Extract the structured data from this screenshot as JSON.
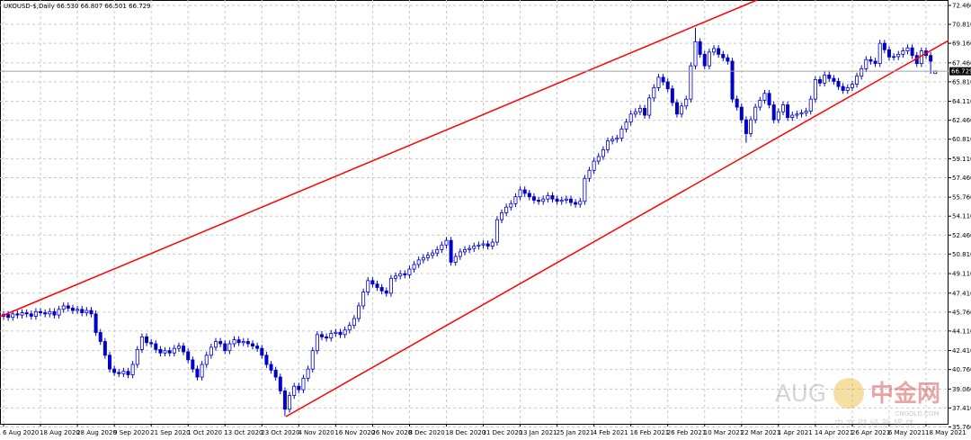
{
  "chart_data": {
    "type": "candlestick",
    "title": "UKOUSD-$,Daily  66.530 66.807 66.501 66.729",
    "color": "#0000c8",
    "grid": true,
    "ylim": [
      36.11,
      72.93
    ],
    "yticks": [
      {
        "value": 72.46,
        "label": "72.460"
      },
      {
        "value": 70.81,
        "label": "70.810"
      },
      {
        "value": 69.16,
        "label": "69.160"
      },
      {
        "value": 67.46,
        "label": "67.460"
      },
      {
        "value": 65.81,
        "label": "65.810"
      },
      {
        "value": 64.11,
        "label": "64.110"
      },
      {
        "value": 62.46,
        "label": "62.460"
      },
      {
        "value": 60.81,
        "label": "60.810"
      },
      {
        "value": 59.11,
        "label": "59.110"
      },
      {
        "value": 57.46,
        "label": "57.460"
      },
      {
        "value": 55.76,
        "label": "55.760"
      },
      {
        "value": 54.11,
        "label": "54.110"
      },
      {
        "value": 52.46,
        "label": "52.460"
      },
      {
        "value": 50.81,
        "label": "50.810"
      },
      {
        "value": 49.11,
        "label": "49.110"
      },
      {
        "value": 47.41,
        "label": "47.410"
      },
      {
        "value": 45.76,
        "label": "45.760"
      },
      {
        "value": 44.11,
        "label": "44.110"
      },
      {
        "value": 42.41,
        "label": "42.410"
      },
      {
        "value": 40.76,
        "label": "40.760"
      },
      {
        "value": 39.06,
        "label": "39.060"
      },
      {
        "value": 37.41,
        "label": "37.410"
      },
      {
        "value": 35.76,
        "label": "35.760"
      }
    ],
    "current_price": {
      "value": 66.729,
      "label": "66.729"
    },
    "categories": [
      "6 Aug 2020",
      null,
      null,
      null,
      null,
      null,
      null,
      null,
      "18 Aug 2020",
      null,
      null,
      null,
      null,
      null,
      null,
      null,
      "28 Aug 2020",
      null,
      null,
      null,
      null,
      null,
      null,
      null,
      "9 Sep 2020",
      null,
      null,
      null,
      null,
      null,
      null,
      null,
      "21 Sep 2020",
      null,
      null,
      null,
      null,
      null,
      null,
      null,
      "1 Oct 2020",
      null,
      null,
      null,
      null,
      null,
      null,
      null,
      "13 Oct 2020",
      null,
      null,
      null,
      null,
      null,
      null,
      null,
      "23 Oct 2020",
      null,
      null,
      null,
      null,
      null,
      null,
      null,
      "4 Nov 2020",
      null,
      null,
      null,
      null,
      null,
      null,
      null,
      "16 Nov 2020",
      null,
      null,
      null,
      null,
      null,
      null,
      null,
      "26 Nov 2020",
      null,
      null,
      null,
      null,
      null,
      null,
      null,
      "8 Dec 2020",
      null,
      null,
      null,
      null,
      null,
      null,
      null,
      "18 Dec 2020",
      null,
      null,
      null,
      null,
      null,
      null,
      null,
      "31 Dec 2020",
      null,
      null,
      null,
      null,
      null,
      null,
      null,
      "13 Jan 2021",
      null,
      null,
      null,
      null,
      null,
      null,
      null,
      "25 Jan 2021",
      null,
      null,
      null,
      null,
      null,
      null,
      null,
      "4 Feb 2021",
      null,
      null,
      null,
      null,
      null,
      null,
      null,
      "16 Feb 2021",
      null,
      null,
      null,
      null,
      null,
      null,
      null,
      "26 Feb 2021",
      null,
      null,
      null,
      null,
      null,
      null,
      null,
      "10 Mar 2021",
      null,
      null,
      null,
      null,
      null,
      null,
      null,
      "22 Mar 2021",
      null,
      null,
      null,
      null,
      null,
      null,
      null,
      "1 Apr 2021",
      null,
      null,
      null,
      null,
      null,
      null,
      null,
      "14 Apr 2021",
      null,
      null,
      null,
      null,
      null,
      null,
      null,
      "26 Apr 2021",
      null,
      null,
      null,
      null,
      null,
      null,
      null,
      "6 May 2021",
      null,
      null,
      null,
      null,
      null,
      null,
      null,
      "18 May 2021",
      null,
      null
    ],
    "candles": [
      [
        45.4,
        45.85,
        45.1,
        45.55
      ],
      [
        45.55,
        45.85,
        45.0,
        45.3
      ],
      [
        45.3,
        45.9,
        45.0,
        45.6
      ],
      [
        45.6,
        45.9,
        45.2,
        45.5
      ],
      [
        45.5,
        46.0,
        45.2,
        45.7
      ],
      [
        45.7,
        46.0,
        45.3,
        45.6
      ],
      [
        45.6,
        45.9,
        45.1,
        45.4
      ],
      [
        45.4,
        46.1,
        45.1,
        45.8
      ],
      [
        45.8,
        46.1,
        45.4,
        45.7
      ],
      [
        45.7,
        46.0,
        45.3,
        45.6
      ],
      [
        45.6,
        46.1,
        45.3,
        45.8
      ],
      [
        45.8,
        46.1,
        45.2,
        45.5
      ],
      [
        45.5,
        46.3,
        45.2,
        46.0
      ],
      [
        46.0,
        46.6,
        45.7,
        46.3
      ],
      [
        46.3,
        46.6,
        45.8,
        46.1
      ],
      [
        46.1,
        46.4,
        45.6,
        45.9
      ],
      [
        45.9,
        46.3,
        45.6,
        46.0
      ],
      [
        46.0,
        46.3,
        45.4,
        45.7
      ],
      [
        45.7,
        46.2,
        45.4,
        45.9
      ],
      [
        45.9,
        46.2,
        45.3,
        45.6
      ],
      [
        45.6,
        45.9,
        43.68,
        43.98
      ],
      [
        43.98,
        44.28,
        42.9,
        43.2
      ],
      [
        43.2,
        43.5,
        41.7,
        42.0
      ],
      [
        42.0,
        42.3,
        40.5,
        40.8
      ],
      [
        40.8,
        41.1,
        40.2,
        40.5
      ],
      [
        40.5,
        40.8,
        40.1,
        40.4
      ],
      [
        40.4,
        40.9,
        40.1,
        40.6
      ],
      [
        40.6,
        40.9,
        40.0,
        40.3
      ],
      [
        40.3,
        41.5,
        40.0,
        41.2
      ],
      [
        41.2,
        42.8,
        40.9,
        42.5
      ],
      [
        42.5,
        43.9,
        42.2,
        43.6
      ],
      [
        43.6,
        43.9,
        42.8,
        43.1
      ],
      [
        43.1,
        43.4,
        42.7,
        43.0
      ],
      [
        43.0,
        43.3,
        42.2,
        42.5
      ],
      [
        42.5,
        42.8,
        41.9,
        42.2
      ],
      [
        42.2,
        42.7,
        41.9,
        42.4
      ],
      [
        42.4,
        42.7,
        41.9,
        42.2
      ],
      [
        42.2,
        42.9,
        41.9,
        42.6
      ],
      [
        42.6,
        43.1,
        42.3,
        42.8
      ],
      [
        42.8,
        43.1,
        42.0,
        42.3
      ],
      [
        42.3,
        42.6,
        41.3,
        41.6
      ],
      [
        41.6,
        41.9,
        40.5,
        40.8
      ],
      [
        40.8,
        41.1,
        39.8,
        40.1
      ],
      [
        40.1,
        41.5,
        39.8,
        41.2
      ],
      [
        41.2,
        42.3,
        40.9,
        42.0
      ],
      [
        42.0,
        43.0,
        41.7,
        42.7
      ],
      [
        42.7,
        43.5,
        42.4,
        43.2
      ],
      [
        43.2,
        43.5,
        42.7,
        43.0
      ],
      [
        43.0,
        43.3,
        42.1,
        42.4
      ],
      [
        42.4,
        43.3,
        42.1,
        43.0
      ],
      [
        43.0,
        43.65,
        42.7,
        43.35
      ],
      [
        43.35,
        43.65,
        42.8,
        43.1
      ],
      [
        43.1,
        43.5,
        42.8,
        43.2
      ],
      [
        43.2,
        43.5,
        42.7,
        43.0
      ],
      [
        43.0,
        43.3,
        42.5,
        42.8
      ],
      [
        42.8,
        43.1,
        42.3,
        42.6
      ],
      [
        42.6,
        42.9,
        41.7,
        42.0
      ],
      [
        42.0,
        42.3,
        40.9,
        41.2
      ],
      [
        41.2,
        41.5,
        40.4,
        40.7
      ],
      [
        40.7,
        41.0,
        39.8,
        40.1
      ],
      [
        40.1,
        40.4,
        38.6,
        38.9
      ],
      [
        38.9,
        39.2,
        36.7,
        37.3
      ],
      [
        37.3,
        38.8,
        37.0,
        38.5
      ],
      [
        38.5,
        39.6,
        38.2,
        39.3
      ],
      [
        39.3,
        39.6,
        38.7,
        39.0
      ],
      [
        39.0,
        40.3,
        38.7,
        40.0
      ],
      [
        40.0,
        41.1,
        39.7,
        40.8
      ],
      [
        40.8,
        42.7,
        40.5,
        42.4
      ],
      [
        42.4,
        44.1,
        42.1,
        43.8
      ],
      [
        43.8,
        44.1,
        43.3,
        43.6
      ],
      [
        43.6,
        43.9,
        43.2,
        43.5
      ],
      [
        43.5,
        44.2,
        43.2,
        43.9
      ],
      [
        43.9,
        44.3,
        43.6,
        44.0
      ],
      [
        44.0,
        44.3,
        43.5,
        43.8
      ],
      [
        43.8,
        44.5,
        43.5,
        44.2
      ],
      [
        44.2,
        44.9,
        43.9,
        44.6
      ],
      [
        44.6,
        45.5,
        44.3,
        45.2
      ],
      [
        45.2,
        46.6,
        44.9,
        46.3
      ],
      [
        46.3,
        47.8,
        46.0,
        47.5
      ],
      [
        47.5,
        48.8,
        47.2,
        48.5
      ],
      [
        48.5,
        48.8,
        47.9,
        48.2
      ],
      [
        48.2,
        48.5,
        47.6,
        47.9
      ],
      [
        47.9,
        48.2,
        47.3,
        47.6
      ],
      [
        47.6,
        47.9,
        47.1,
        47.4
      ],
      [
        47.4,
        49.0,
        47.1,
        48.7
      ],
      [
        48.7,
        49.2,
        48.4,
        48.9
      ],
      [
        48.9,
        49.4,
        48.6,
        49.1
      ],
      [
        49.1,
        49.4,
        48.7,
        49.0
      ],
      [
        49.0,
        49.8,
        48.7,
        49.5
      ],
      [
        49.5,
        50.2,
        49.2,
        49.9
      ],
      [
        49.9,
        50.6,
        49.6,
        50.3
      ],
      [
        50.3,
        50.8,
        50.0,
        50.5
      ],
      [
        50.5,
        51.0,
        50.2,
        50.7
      ],
      [
        50.7,
        51.2,
        50.4,
        50.9
      ],
      [
        50.9,
        51.5,
        50.6,
        51.2
      ],
      [
        51.2,
        51.9,
        50.9,
        51.6
      ],
      [
        51.6,
        52.3,
        51.3,
        52.0
      ],
      [
        52.0,
        52.3,
        49.8,
        50.1
      ],
      [
        50.1,
        50.9,
        49.8,
        50.6
      ],
      [
        50.6,
        51.3,
        50.3,
        51.0
      ],
      [
        51.0,
        51.5,
        50.7,
        51.2
      ],
      [
        51.2,
        51.6,
        50.9,
        51.3
      ],
      [
        51.3,
        51.8,
        51.0,
        51.5
      ],
      [
        51.5,
        51.9,
        51.2,
        51.6
      ],
      [
        51.6,
        52.0,
        51.3,
        51.7
      ],
      [
        51.7,
        52.0,
        51.2,
        51.5
      ],
      [
        51.5,
        52.15,
        51.2,
        51.85
      ],
      [
        51.85,
        54.1,
        51.55,
        53.8
      ],
      [
        53.8,
        54.7,
        53.5,
        54.4
      ],
      [
        54.4,
        55.2,
        54.1,
        54.9
      ],
      [
        54.9,
        55.5,
        54.6,
        55.2
      ],
      [
        55.2,
        56.1,
        54.9,
        55.8
      ],
      [
        55.8,
        56.7,
        55.5,
        56.4
      ],
      [
        56.4,
        56.7,
        55.8,
        56.1
      ],
      [
        56.1,
        56.4,
        55.5,
        55.8
      ],
      [
        55.8,
        56.1,
        55.2,
        55.5
      ],
      [
        55.5,
        55.8,
        55.1,
        55.4
      ],
      [
        55.4,
        55.9,
        55.1,
        55.6
      ],
      [
        55.6,
        56.2,
        55.3,
        55.9
      ],
      [
        55.9,
        56.2,
        55.3,
        55.6
      ],
      [
        55.6,
        55.9,
        55.1,
        55.4
      ],
      [
        55.4,
        55.8,
        55.1,
        55.5
      ],
      [
        55.5,
        55.9,
        55.2,
        55.6
      ],
      [
        55.6,
        55.9,
        55.0,
        55.3
      ],
      [
        55.3,
        55.6,
        54.85,
        55.15
      ],
      [
        55.15,
        55.7,
        54.85,
        55.4
      ],
      [
        55.4,
        57.7,
        55.1,
        57.4
      ],
      [
        57.4,
        58.4,
        57.1,
        58.1
      ],
      [
        58.1,
        59.2,
        57.8,
        58.9
      ],
      [
        58.9,
        59.6,
        58.6,
        59.3
      ],
      [
        59.3,
        60.2,
        59.0,
        59.9
      ],
      [
        59.9,
        60.96,
        59.6,
        60.66
      ],
      [
        60.66,
        61.1,
        60.36,
        60.8
      ],
      [
        60.8,
        61.2,
        60.5,
        60.9
      ],
      [
        60.9,
        62.0,
        60.6,
        61.7
      ],
      [
        61.7,
        62.6,
        61.4,
        62.3
      ],
      [
        62.3,
        63.3,
        62.0,
        63.0
      ],
      [
        63.0,
        63.5,
        62.7,
        63.2
      ],
      [
        63.2,
        63.8,
        62.9,
        63.5
      ],
      [
        63.5,
        63.8,
        62.6,
        62.9
      ],
      [
        62.9,
        64.7,
        62.6,
        64.4
      ],
      [
        64.4,
        65.6,
        64.1,
        65.3
      ],
      [
        65.3,
        66.5,
        65.0,
        66.2
      ],
      [
        66.2,
        66.5,
        65.5,
        65.8
      ],
      [
        65.8,
        66.1,
        64.9,
        65.2
      ],
      [
        65.2,
        65.5,
        63.7,
        64.0
      ],
      [
        64.0,
        64.3,
        62.7,
        63.0
      ],
      [
        63.0,
        64.0,
        62.7,
        63.7
      ],
      [
        63.7,
        64.6,
        63.4,
        64.3
      ],
      [
        64.3,
        67.5,
        64.0,
        67.2
      ],
      [
        67.2,
        70.5,
        66.9,
        69.3
      ],
      [
        69.3,
        69.6,
        67.9,
        68.2
      ],
      [
        68.2,
        68.5,
        66.9,
        67.2
      ],
      [
        67.2,
        68.7,
        66.9,
        68.4
      ],
      [
        68.4,
        69.0,
        68.1,
        68.7
      ],
      [
        68.7,
        69.0,
        67.9,
        68.2
      ],
      [
        68.2,
        68.5,
        67.6,
        67.9
      ],
      [
        67.9,
        68.2,
        67.3,
        67.6
      ],
      [
        67.6,
        67.9,
        64.0,
        64.3
      ],
      [
        64.3,
        64.6,
        63.3,
        63.6
      ],
      [
        63.6,
        63.9,
        62.2,
        62.5
      ],
      [
        62.5,
        62.8,
        60.5,
        61.3
      ],
      [
        61.3,
        62.8,
        61.0,
        62.5
      ],
      [
        62.5,
        63.9,
        62.2,
        63.6
      ],
      [
        63.6,
        64.5,
        63.3,
        64.2
      ],
      [
        64.2,
        65.1,
        63.9,
        64.8
      ],
      [
        64.8,
        65.1,
        63.5,
        63.8
      ],
      [
        63.8,
        64.1,
        62.2,
        62.5
      ],
      [
        62.5,
        63.5,
        62.2,
        63.2
      ],
      [
        63.2,
        64.1,
        62.9,
        63.8
      ],
      [
        63.8,
        64.1,
        62.4,
        62.7
      ],
      [
        62.7,
        63.2,
        62.4,
        62.9
      ],
      [
        62.9,
        63.3,
        62.6,
        63.0
      ],
      [
        63.0,
        63.4,
        62.7,
        63.1
      ],
      [
        63.1,
        63.55,
        62.8,
        63.25
      ],
      [
        63.25,
        64.6,
        62.95,
        64.3
      ],
      [
        64.3,
        66.3,
        64.0,
        66.0
      ],
      [
        66.0,
        66.3,
        65.4,
        65.7
      ],
      [
        65.7,
        66.7,
        65.4,
        66.4
      ],
      [
        66.4,
        66.7,
        65.8,
        66.1
      ],
      [
        66.1,
        66.4,
        65.55,
        65.85
      ],
      [
        65.85,
        66.15,
        65.1,
        65.4
      ],
      [
        65.4,
        65.7,
        64.76,
        65.06
      ],
      [
        65.06,
        65.6,
        64.76,
        65.3
      ],
      [
        65.3,
        65.9,
        65.0,
        65.6
      ],
      [
        65.6,
        66.6,
        65.3,
        66.3
      ],
      [
        66.3,
        67.25,
        66.0,
        66.95
      ],
      [
        66.95,
        68.04,
        66.65,
        67.74
      ],
      [
        67.74,
        68.04,
        67.3,
        67.6
      ],
      [
        67.6,
        67.9,
        67.1,
        67.4
      ],
      [
        67.4,
        69.46,
        67.1,
        69.16
      ],
      [
        69.16,
        69.46,
        68.3,
        68.6
      ],
      [
        68.6,
        68.9,
        67.67,
        67.97
      ],
      [
        67.97,
        68.3,
        67.67,
        68.0
      ],
      [
        68.0,
        68.5,
        67.7,
        68.2
      ],
      [
        68.2,
        68.8,
        67.9,
        68.5
      ],
      [
        68.5,
        69.06,
        68.2,
        68.76
      ],
      [
        68.76,
        69.06,
        67.8,
        68.1
      ],
      [
        68.1,
        68.4,
        67.1,
        67.4
      ],
      [
        67.4,
        68.8,
        67.1,
        68.5
      ],
      [
        68.5,
        68.8,
        67.8,
        68.1
      ],
      [
        68.1,
        68.4,
        66.5,
        67.6
      ],
      [
        66.53,
        66.807,
        66.501,
        66.729
      ]
    ],
    "watermark": {
      "brand": "AUG",
      "name": "中金网",
      "site": "CNGOLD.COM",
      "tagline": "中 文 财 经 新 媒 体"
    }
  }
}
